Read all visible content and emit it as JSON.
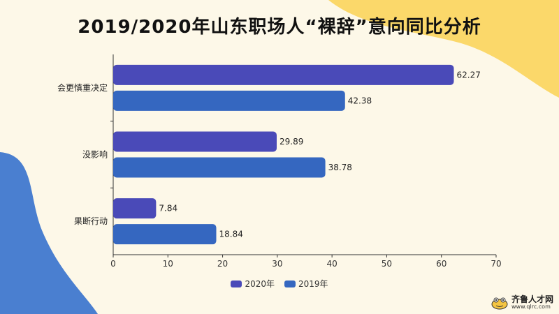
{
  "title": "2019/2020年山东职场人“裸辞”意向同比分析",
  "colors": {
    "background": "#fdf8e8",
    "blob_yellow": "#fbd86a",
    "blob_blue": "#4a7fd0",
    "series_2020": "#4a4ab8",
    "series_2019": "#3567c0",
    "axis": "#333333"
  },
  "chart_data": {
    "type": "bar",
    "orientation": "horizontal",
    "categories": [
      "会更慎重决定",
      "没影响",
      "果断行动"
    ],
    "series": [
      {
        "name": "2020年",
        "values": [
          62.27,
          29.89,
          7.84
        ]
      },
      {
        "name": "2019年",
        "values": [
          42.38,
          38.78,
          18.84
        ]
      }
    ],
    "xlim": [
      0,
      70
    ],
    "xticks": [
      0,
      10,
      20,
      30,
      40,
      50,
      60,
      70
    ],
    "grid": false,
    "legend": "bottom-center",
    "data_labels": true
  },
  "watermark": {
    "name": "齐鲁人才网",
    "url": "www.qlrc.com",
    "icon": "frog-logo-icon"
  }
}
